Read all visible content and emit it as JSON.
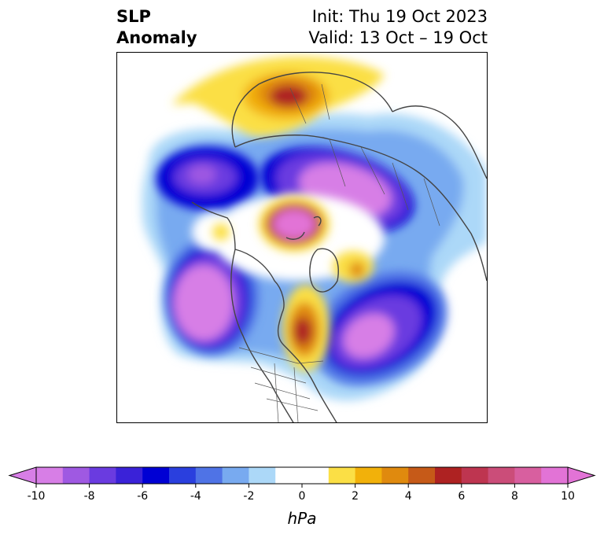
{
  "title": {
    "left_line1": "SLP",
    "left_line2": "Anomaly",
    "right_line1": "Init: Thu 19 Oct 2023",
    "right_line2": "Valid: 13 Oct – 19 Oct"
  },
  "colorbar": {
    "unit": "hPa",
    "ticks": [
      "-10",
      "-8",
      "-6",
      "-4",
      "-2",
      "0",
      "2",
      "4",
      "6",
      "8",
      "10"
    ],
    "under_color": "#d77ee6",
    "over_color": "#e273d6",
    "colors": [
      "#d77ee6",
      "#9f59e2",
      "#6a3be0",
      "#3a22d8",
      "#0000d4",
      "#2a3fde",
      "#4f73e6",
      "#78aaf0",
      "#acd8f8",
      "#ffffff",
      "#ffffff",
      "#fbdf45",
      "#f2b10a",
      "#e08a0e",
      "#c65a18",
      "#ae2222",
      "#be3550",
      "#cb4d79",
      "#d85f9f",
      "#e273d6"
    ]
  },
  "map": {
    "projection": "north-polar-stereographic",
    "anomaly_features": [
      {
        "name": "low-north-pacific-aleutians",
        "type": "low",
        "min_hpa": -10
      },
      {
        "name": "low-siberia",
        "type": "low",
        "min_hpa": -10
      },
      {
        "name": "low-alaska-bering",
        "type": "low",
        "min_hpa": -9
      },
      {
        "name": "low-north-atlantic",
        "type": "low",
        "min_hpa": -10
      },
      {
        "name": "high-arctic-ocean",
        "type": "high",
        "max_hpa": 10
      },
      {
        "name": "high-europe",
        "type": "high",
        "max_hpa": 6
      },
      {
        "name": "high-hudson-bay",
        "type": "high",
        "max_hpa": 6
      },
      {
        "name": "high-central-asia",
        "type": "high",
        "max_hpa": 3
      }
    ]
  }
}
